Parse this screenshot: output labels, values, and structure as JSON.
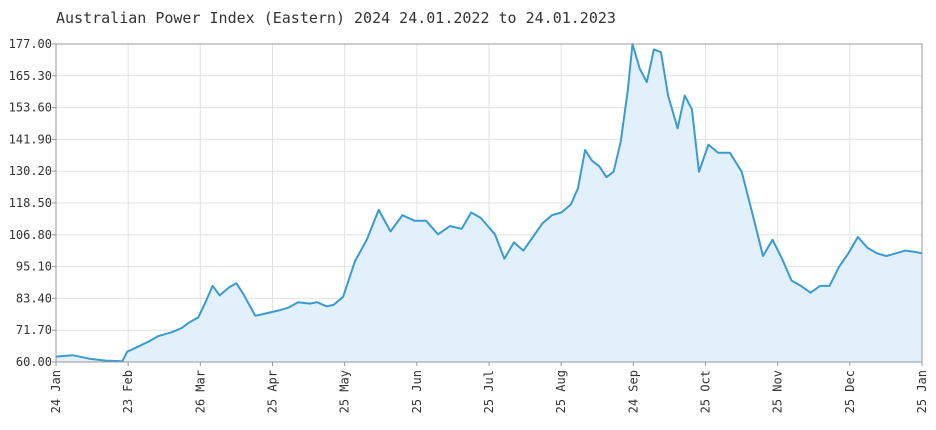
{
  "chart_data": {
    "type": "area",
    "title": "Australian Power Index (Eastern) 2024 24.01.2022 to 24.01.2023",
    "xlabel": "",
    "ylabel": "",
    "ylim": [
      60.0,
      177.0
    ],
    "y_ticks": [
      "177.00",
      "165.30",
      "153.60",
      "141.90",
      "130.20",
      "118.50",
      "106.80",
      "95.10",
      "83.40",
      "71.70",
      "60.00"
    ],
    "x_ticks": [
      "24 Jan",
      "23 Feb",
      "26 Mar",
      "25 Apr",
      "25 May",
      "25 Jun",
      "25 Jul",
      "25 Aug",
      "24 Sep",
      "25 Oct",
      "25 Nov",
      "25 Dec",
      "25 Jan"
    ],
    "grid": true,
    "colors": {
      "line": "#3a9bd0",
      "fill": "#e2f0fb",
      "grid": "#e2e2e2",
      "axis": "#999999"
    },
    "series": [
      {
        "x": [
          "2022-01-24",
          "2022-01-31",
          "2022-02-07",
          "2022-02-14",
          "2022-02-21",
          "2022-02-23",
          "2022-02-28",
          "2022-03-04",
          "2022-03-08",
          "2022-03-14",
          "2022-03-18",
          "2022-03-21",
          "2022-03-25",
          "2022-03-28",
          "2022-03-31",
          "2022-04-03",
          "2022-04-07",
          "2022-04-10",
          "2022-04-13",
          "2022-04-18",
          "2022-04-23",
          "2022-04-28",
          "2022-05-02",
          "2022-05-06",
          "2022-05-11",
          "2022-05-14",
          "2022-05-18",
          "2022-05-21",
          "2022-05-25",
          "2022-05-30",
          "2022-06-04",
          "2022-06-09",
          "2022-06-14",
          "2022-06-19",
          "2022-06-24",
          "2022-06-29",
          "2022-07-04",
          "2022-07-09",
          "2022-07-14",
          "2022-07-18",
          "2022-07-22",
          "2022-07-25",
          "2022-07-28",
          "2022-08-01",
          "2022-08-05",
          "2022-08-09",
          "2022-08-13",
          "2022-08-17",
          "2022-08-21",
          "2022-08-25",
          "2022-08-29",
          "2022-09-01",
          "2022-09-04",
          "2022-09-07",
          "2022-09-10",
          "2022-09-13",
          "2022-09-16",
          "2022-09-19",
          "2022-09-22",
          "2022-09-24",
          "2022-09-27",
          "2022-09-30",
          "2022-10-03",
          "2022-10-06",
          "2022-10-09",
          "2022-10-13",
          "2022-10-16",
          "2022-10-19",
          "2022-10-22",
          "2022-10-26",
          "2022-10-30",
          "2022-11-04",
          "2022-11-09",
          "2022-11-14",
          "2022-11-18",
          "2022-11-22",
          "2022-11-26",
          "2022-11-30",
          "2022-12-04",
          "2022-12-08",
          "2022-12-12",
          "2022-12-16",
          "2022-12-20",
          "2022-12-24",
          "2022-12-28",
          "2023-01-01",
          "2023-01-05",
          "2023-01-09",
          "2023-01-13",
          "2023-01-17",
          "2023-01-21",
          "2023-01-24"
        ],
        "values": [
          62.0,
          62.5,
          61.2,
          60.5,
          60.3,
          63.8,
          65.8,
          67.5,
          69.5,
          71.0,
          72.5,
          74.5,
          76.5,
          82.0,
          88.0,
          84.5,
          87.5,
          89.0,
          85.0,
          77.0,
          78.0,
          79.0,
          80.0,
          82.0,
          81.5,
          82.0,
          80.5,
          81.0,
          84.0,
          97.0,
          105.0,
          116.0,
          108.0,
          114.0,
          112.0,
          112.0,
          107.0,
          110.0,
          109.0,
          115.0,
          113.0,
          110.0,
          107.0,
          98.0,
          104.0,
          101.0,
          106.0,
          111.0,
          114.0,
          115.0,
          118.0,
          124.0,
          138.0,
          134.0,
          132.0,
          128.0,
          130.0,
          141.0,
          160.0,
          177.0,
          168.0,
          163.0,
          175.0,
          174.0,
          158.0,
          146.0,
          158.0,
          153.0,
          130.0,
          140.0,
          137.0,
          137.0,
          130.0,
          113.0,
          99.0,
          105.0,
          98.0,
          90.0,
          88.0,
          85.5,
          88.0,
          88.0,
          95.0,
          100.0,
          106.0,
          102.0,
          100.0,
          99.0,
          100.0,
          101.0,
          100.5,
          100.0
        ]
      }
    ]
  }
}
